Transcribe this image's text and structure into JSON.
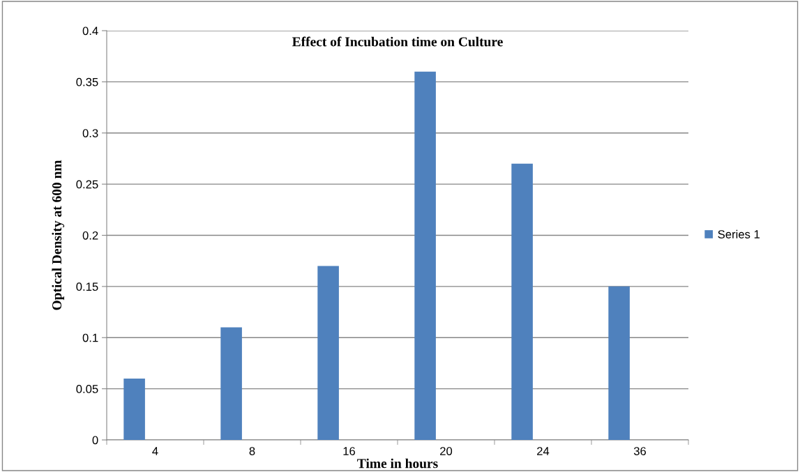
{
  "chart_data": {
    "type": "bar",
    "title": "Effect of Incubation time on Culture",
    "xlabel": "Time in hours",
    "ylabel": "Optical Density at 600 nm",
    "categories": [
      "4",
      "8",
      "16",
      "20",
      "24",
      "36"
    ],
    "series": [
      {
        "name": "Series 1",
        "color": "#4f81bd",
        "values": [
          0.06,
          0.11,
          0.17,
          0.36,
          0.27,
          0.15
        ]
      }
    ],
    "ylim": [
      0,
      0.4
    ],
    "yticks": [
      0,
      0.05,
      0.1,
      0.15,
      0.2,
      0.25,
      0.3,
      0.35,
      0.4
    ],
    "grid": "y",
    "legend": "right"
  }
}
